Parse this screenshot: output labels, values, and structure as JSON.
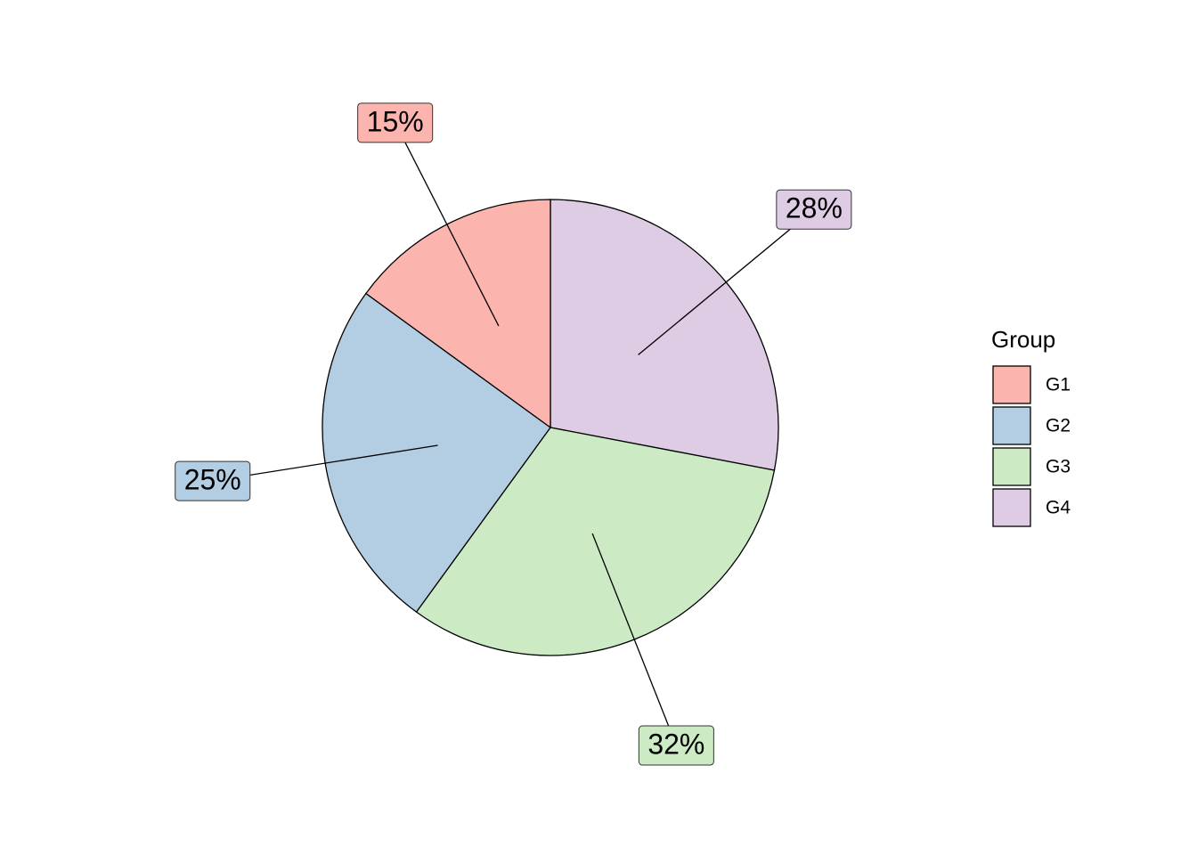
{
  "chart_data": {
    "type": "pie",
    "categories": [
      "G1",
      "G2",
      "G3",
      "G4"
    ],
    "values": [
      15,
      25,
      32,
      28
    ],
    "value_labels": [
      "15%",
      "25%",
      "32%",
      "28%"
    ],
    "colors": [
      "#FBB4AE",
      "#B3CDE3",
      "#CCEBC5",
      "#DECBE4"
    ],
    "legend_title": "Group",
    "legend": "right"
  }
}
